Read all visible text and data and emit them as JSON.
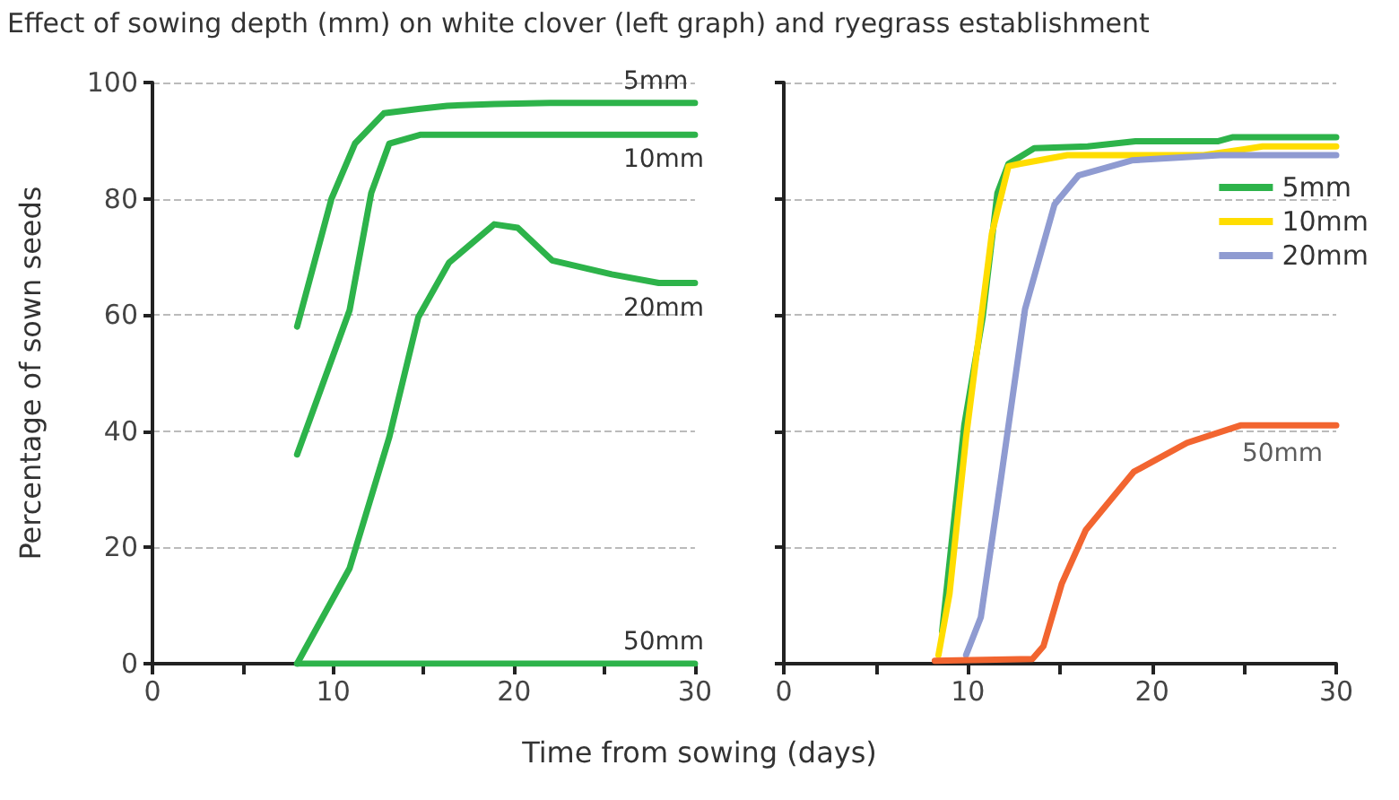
{
  "chart_data": [
    {
      "type": "line",
      "title": "Effect of sowing depth (mm) on white clover (left graph) and ryegrass establishment",
      "xlabel": "Time from sowing (days)",
      "ylabel": "Percentage of sown seeds",
      "xlim": [
        0,
        30
      ],
      "xticks": [
        0,
        {
          "value": 5,
          "label": null
        },
        10,
        {
          "value": 15,
          "label": null
        },
        20,
        {
          "value": 25,
          "label": null
        },
        30
      ],
      "ylim": [
        0,
        100
      ],
      "yticks": [
        0,
        20,
        40,
        60,
        80,
        100
      ],
      "grid": "y",
      "legend": false,
      "marker": "none",
      "line_style": "solid",
      "series": [
        {
          "name": "5mm",
          "color": "#2db34a",
          "x": [
            8,
            9.9,
            11.2,
            12.8,
            14.8,
            16.3,
            18.9,
            22,
            30
          ],
          "values": [
            58,
            80,
            89.5,
            94.7,
            95.5,
            96,
            96.3,
            96.5,
            96.5
          ]
        },
        {
          "name": "10mm",
          "color": "#2db34a",
          "x": [
            8,
            10.9,
            12.1,
            13.1,
            14.8,
            17,
            30
          ],
          "values": [
            36,
            60.8,
            81,
            89.5,
            91,
            91,
            91
          ]
        },
        {
          "name": "20mm",
          "color": "#2db34a",
          "x": [
            8,
            10.9,
            13.1,
            14.7,
            16.4,
            18.9,
            20.2,
            22.1,
            25.4,
            28,
            30
          ],
          "values": [
            0,
            16.4,
            39,
            59.6,
            69,
            75.6,
            75,
            69.4,
            67,
            65.5,
            65.5
          ]
        },
        {
          "name": "50mm",
          "color": "#2db34a",
          "x": [
            8,
            30
          ],
          "values": [
            0,
            0
          ]
        }
      ]
    },
    {
      "type": "line",
      "xlim": [
        0,
        30
      ],
      "xticks": [
        0,
        {
          "value": 5,
          "label": null
        },
        10,
        {
          "value": 15,
          "label": null
        },
        20,
        {
          "value": 25,
          "label": null
        },
        30
      ],
      "ylim": [
        0,
        100
      ],
      "yticks": [
        0,
        20,
        40,
        60,
        80,
        100
      ],
      "tick_labels": "x",
      "grid": "y",
      "legend": "top right",
      "marker": "none",
      "line_style": "solid",
      "annotations": [
        {
          "text": "50mm",
          "x": 30,
          "y": 41
        }
      ],
      "series": [
        {
          "name": "5mm",
          "color": "#2db34a",
          "x": [
            8.6,
            9.8,
            10.8,
            11.6,
            12.2,
            13.6,
            16.5,
            19.1,
            23.6,
            24.4,
            30
          ],
          "values": [
            5.6,
            41,
            59.6,
            81,
            86,
            88.7,
            89,
            89.9,
            89.9,
            90.6,
            90.6
          ]
        },
        {
          "name": "10mm",
          "color": "#ffdd00",
          "x": [
            8.4,
            9,
            9.9,
            11.3,
            12.2,
            12.8,
            15.4,
            22.8,
            25,
            26,
            30
          ],
          "values": [
            1.5,
            12,
            39,
            74,
            85.6,
            86,
            87.5,
            87.5,
            88.5,
            89,
            89
          ]
        },
        {
          "name": "20mm",
          "color": "#8f9bd1",
          "x": [
            9.9,
            10.7,
            11.8,
            13.1,
            14.7,
            16,
            18.9,
            23.7,
            30
          ],
          "values": [
            1.5,
            8,
            32,
            61,
            79,
            84,
            86.6,
            87.5,
            87.5
          ]
        },
        {
          "color": "#f26530",
          "x": [
            8.2,
            13.5,
            14.1,
            15.1,
            16.4,
            19,
            21.9,
            24.8,
            30
          ],
          "values": [
            0.5,
            0.8,
            3,
            13.8,
            23,
            33,
            38,
            41,
            41
          ]
        }
      ]
    }
  ]
}
